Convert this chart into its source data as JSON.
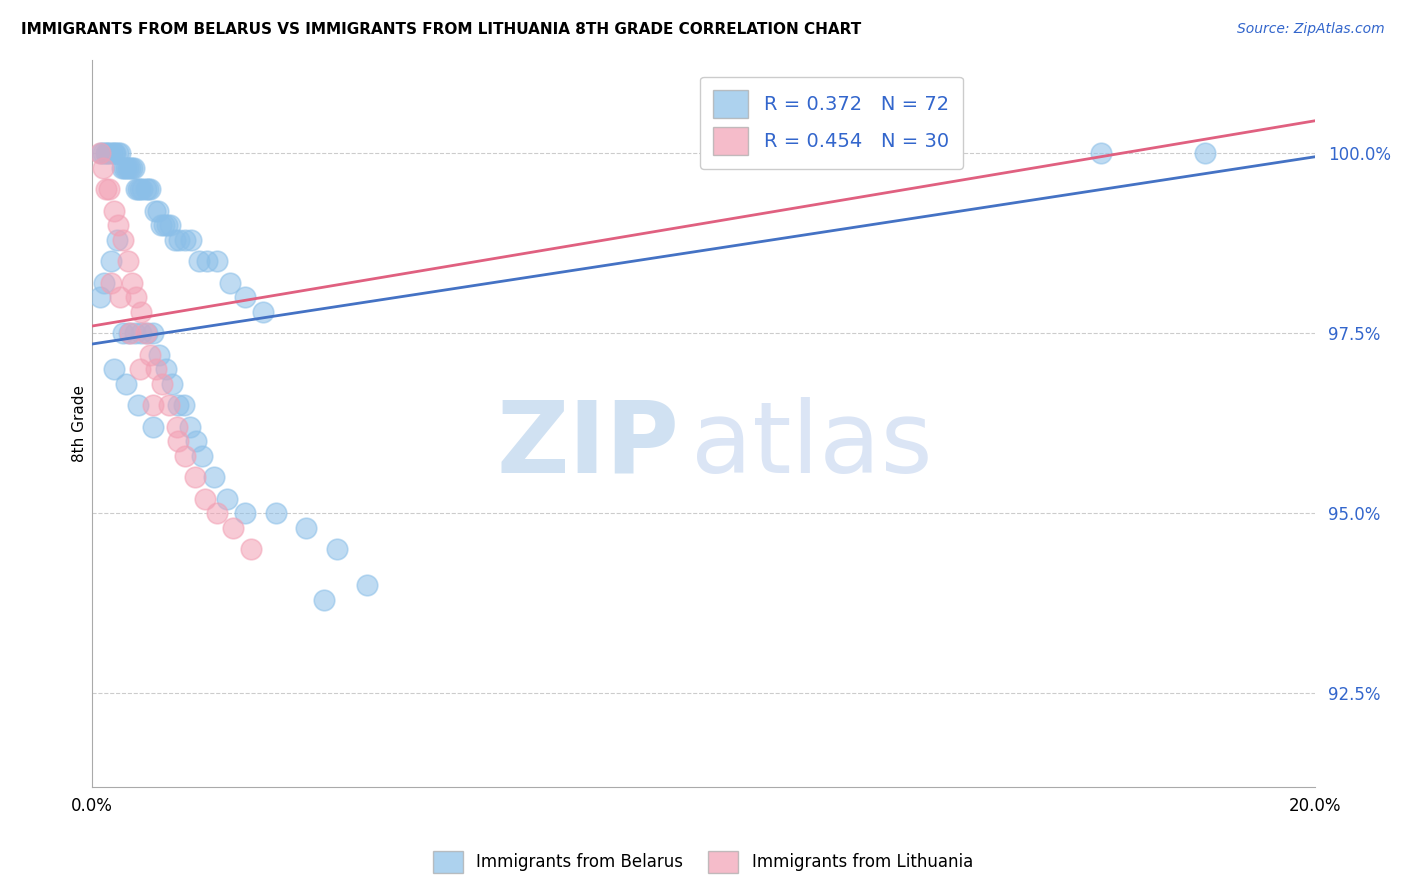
{
  "title": "IMMIGRANTS FROM BELARUS VS IMMIGRANTS FROM LITHUANIA 8TH GRADE CORRELATION CHART",
  "source": "Source: ZipAtlas.com",
  "ylabel": "8th Grade",
  "ytick_labels": [
    "92.5%",
    "95.0%",
    "97.5%",
    "100.0%"
  ],
  "ytick_values": [
    92.5,
    95.0,
    97.5,
    100.0
  ],
  "xmin": 0.0,
  "xmax": 20.0,
  "ymin": 91.2,
  "ymax": 101.3,
  "legend_blue_r": "R = 0.372",
  "legend_blue_n": "N = 72",
  "legend_pink_r": "R = 0.454",
  "legend_pink_n": "N = 30",
  "legend_label_blue": "Immigrants from Belarus",
  "legend_label_pink": "Immigrants from Lithuania",
  "blue_color": "#8BBFE8",
  "pink_color": "#F2A0B4",
  "blue_line_color": "#4472C4",
  "pink_line_color": "#E06080",
  "blue_line_x0": 0.0,
  "blue_line_y0": 97.35,
  "blue_line_x1": 20.0,
  "blue_line_y1": 99.95,
  "pink_line_x0": 0.0,
  "pink_line_y0": 97.6,
  "pink_line_x1": 20.0,
  "pink_line_y1": 100.45,
  "blue_scatter_x": [
    0.15,
    0.18,
    0.22,
    0.25,
    0.28,
    0.32,
    0.35,
    0.38,
    0.42,
    0.45,
    0.48,
    0.52,
    0.55,
    0.58,
    0.62,
    0.65,
    0.68,
    0.72,
    0.75,
    0.78,
    0.82,
    0.88,
    0.92,
    0.95,
    1.02,
    1.08,
    1.12,
    1.18,
    1.22,
    1.28,
    1.35,
    1.42,
    1.52,
    1.62,
    1.75,
    1.88,
    2.05,
    2.25,
    2.5,
    2.8,
    0.12,
    0.2,
    0.3,
    0.4,
    0.5,
    0.6,
    0.7,
    0.8,
    0.9,
    1.0,
    1.1,
    1.2,
    1.3,
    1.4,
    1.5,
    1.6,
    1.7,
    1.8,
    2.0,
    2.2,
    2.5,
    3.0,
    3.5,
    4.0,
    3.8,
    4.5,
    0.35,
    0.55,
    0.75,
    1.0,
    16.5,
    18.2
  ],
  "blue_scatter_y": [
    100.0,
    100.0,
    100.0,
    100.0,
    100.0,
    100.0,
    100.0,
    100.0,
    100.0,
    100.0,
    99.8,
    99.8,
    99.8,
    99.8,
    99.8,
    99.8,
    99.8,
    99.5,
    99.5,
    99.5,
    99.5,
    99.5,
    99.5,
    99.5,
    99.2,
    99.2,
    99.0,
    99.0,
    99.0,
    99.0,
    98.8,
    98.8,
    98.8,
    98.8,
    98.5,
    98.5,
    98.5,
    98.2,
    98.0,
    97.8,
    98.0,
    98.2,
    98.5,
    98.8,
    97.5,
    97.5,
    97.5,
    97.5,
    97.5,
    97.5,
    97.2,
    97.0,
    96.8,
    96.5,
    96.5,
    96.2,
    96.0,
    95.8,
    95.5,
    95.2,
    95.0,
    95.0,
    94.8,
    94.5,
    93.8,
    94.0,
    97.0,
    96.8,
    96.5,
    96.2,
    100.0,
    100.0
  ],
  "pink_scatter_x": [
    0.12,
    0.18,
    0.22,
    0.28,
    0.35,
    0.42,
    0.5,
    0.58,
    0.65,
    0.72,
    0.8,
    0.88,
    0.95,
    1.05,
    1.15,
    1.25,
    1.38,
    1.52,
    1.68,
    1.85,
    2.05,
    2.3,
    2.6,
    0.3,
    0.45,
    0.62,
    0.78,
    1.0,
    1.4,
    13.5
  ],
  "pink_scatter_y": [
    100.0,
    99.8,
    99.5,
    99.5,
    99.2,
    99.0,
    98.8,
    98.5,
    98.2,
    98.0,
    97.8,
    97.5,
    97.2,
    97.0,
    96.8,
    96.5,
    96.2,
    95.8,
    95.5,
    95.2,
    95.0,
    94.8,
    94.5,
    98.2,
    98.0,
    97.5,
    97.0,
    96.5,
    96.0,
    100.0
  ]
}
